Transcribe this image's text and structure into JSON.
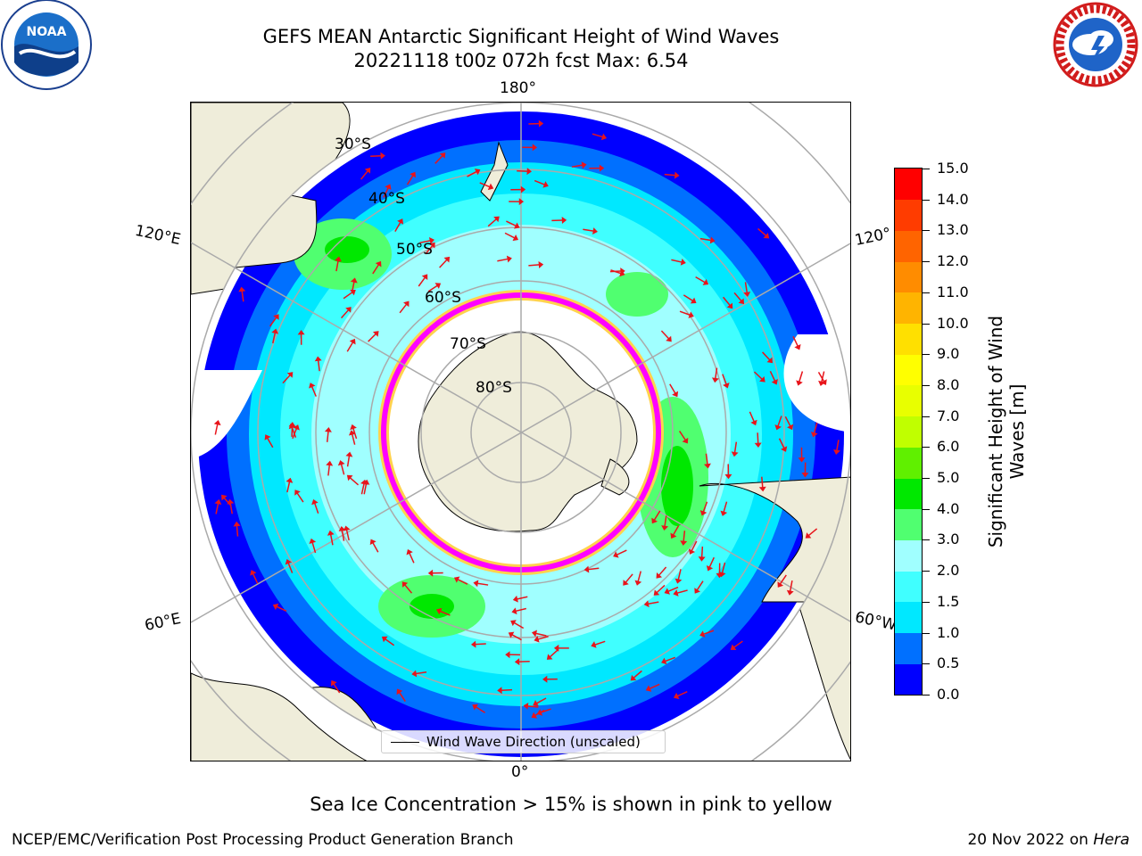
{
  "header": {
    "title_line1": "GEFS MEAN Antarctic Significant Height of Wind Waves",
    "title_line2": "20221118 t00z 072h fcst   Max: 6.54"
  },
  "map": {
    "projection": "south polar stereographic",
    "lon_labels": {
      "top": "180°",
      "bottom": "0°",
      "left_upper": "120°E",
      "right_upper": "120°",
      "left_lower": "60°E",
      "right_lower": "60°W"
    },
    "lat_labels": [
      "30°S",
      "40°S",
      "50°S",
      "60°S",
      "70°S",
      "80°S"
    ],
    "legend_label": "Wind Wave Direction (unscaled)",
    "arrow_color": "#e8141b",
    "land_color": "#efedda",
    "ice_colors": [
      "#ff00ff",
      "#ffd24d"
    ]
  },
  "colorbar": {
    "label": "Significant Height of Wind Waves [m]",
    "ticks": [
      "0.0",
      "0.5",
      "1.0",
      "1.5",
      "2.0",
      "3.0",
      "4.0",
      "5.0",
      "6.0",
      "7.0",
      "8.0",
      "9.0",
      "10.0",
      "11.0",
      "12.0",
      "13.0",
      "14.0",
      "15.0"
    ],
    "colors": [
      "#0000ff",
      "#0070ff",
      "#00e8ff",
      "#40ffff",
      "#a0ffff",
      "#50ff70",
      "#00e800",
      "#60f000",
      "#c0ff00",
      "#e8ff00",
      "#ffff00",
      "#ffe000",
      "#ffb400",
      "#ff8c00",
      "#ff6400",
      "#ff3c00",
      "#ff0000"
    ]
  },
  "caption": "Sea Ice Concentration > 15% is shown in pink to yellow",
  "footer": {
    "left": "NCEP/EMC/Verification Post Processing Product Generation Branch",
    "right_prefix": "20 Nov 2022 on ",
    "right_system": "Hera"
  },
  "logos": {
    "left": "NOAA",
    "right_ring": "NATIONAL WEATHER SERVICE"
  }
}
